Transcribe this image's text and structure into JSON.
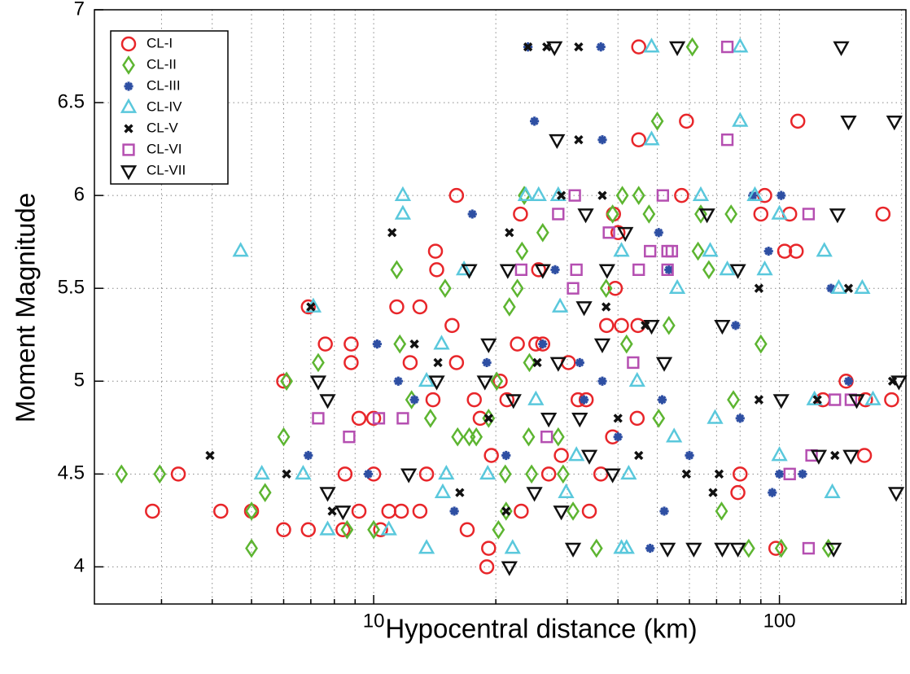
{
  "chart_data": {
    "type": "scatter",
    "xlabel": "Hypocentral distance (km)",
    "ylabel": "Moment Magnitude",
    "xscale": "log",
    "xlim": [
      2.05,
      205
    ],
    "xticks": [
      10,
      100
    ],
    "xminorticks": [
      3,
      4,
      5,
      6,
      7,
      8,
      9,
      20,
      30,
      40,
      50,
      60,
      70,
      80,
      90,
      200
    ],
    "ylim": [
      3.8,
      7
    ],
    "yticks": [
      4,
      4.5,
      5,
      5.5,
      6,
      6.5,
      7
    ],
    "grid": true,
    "legend": "upper left",
    "series": [
      {
        "name": "CL-I",
        "color": "#e8262a",
        "marker": "circle",
        "x": [
          2.85,
          3.3,
          4.2,
          5.0,
          6,
          6,
          6.9,
          6.9,
          7.6,
          8.5,
          8.4,
          8.8,
          8.8,
          9.2,
          9.2,
          10,
          10,
          10.4,
          10.9,
          11.4,
          11.7,
          12.3,
          13,
          13,
          13.5,
          14,
          14.2,
          14.3,
          16,
          16,
          15.6,
          17,
          17.7,
          18.3,
          19,
          19.2,
          19.5,
          20.5,
          21.3,
          22.6,
          23,
          23.1,
          25.1,
          25.5,
          26.1,
          27,
          29,
          30.2,
          31.9,
          33.4,
          34,
          36.3,
          37.5,
          38.8,
          39.4,
          40.8,
          40,
          39,
          44.8,
          44.6,
          45,
          45,
          57.4,
          59,
          90,
          92,
          98,
          103,
          106,
          111,
          110,
          80,
          79,
          128,
          146,
          162,
          180,
          189,
          163
        ],
        "values": [
          4.3,
          4.5,
          4.3,
          4.3,
          4.2,
          5.0,
          4.2,
          5.4,
          5.2,
          4.5,
          4.2,
          5.1,
          5.2,
          4.8,
          4.3,
          4.8,
          4.5,
          4.2,
          4.3,
          5.4,
          4.3,
          5.1,
          5.4,
          4.3,
          4.5,
          4.9,
          5.7,
          5.6,
          6.0,
          5.1,
          5.3,
          4.2,
          4.9,
          4.8,
          4.0,
          4.1,
          4.6,
          5.0,
          4.9,
          5.2,
          5.9,
          4.3,
          5.2,
          5.6,
          5.2,
          4.5,
          4.6,
          5.1,
          4.9,
          4.9,
          4.3,
          4.5,
          5.3,
          4.7,
          5.5,
          5.3,
          5.8,
          5.9,
          5.3,
          4.8,
          6.3,
          6.8,
          6.0,
          6.4,
          5.9,
          6.0,
          4.1,
          5.7,
          5.9,
          6.4,
          5.7,
          4.5,
          4.4,
          4.9,
          5.0,
          4.6,
          5.9,
          4.9,
          4.9
        ]
      },
      {
        "name": "CL-II",
        "color": "#5db531",
        "marker": "diamond",
        "x": [
          2.39,
          2.97,
          5.0,
          5.0,
          5.4,
          6.0,
          6.1,
          7.3,
          8.6,
          10,
          11.6,
          11.4,
          12.4,
          13.8,
          15,
          16.1,
          17.2,
          17.9,
          19.2,
          20.1,
          20.3,
          21.2,
          21.1,
          21.6,
          22.6,
          23.2,
          23.5,
          24.2,
          24.1,
          24.5,
          26.1,
          28.5,
          29.3,
          31,
          35.4,
          37.4,
          38.8,
          41,
          42,
          45,
          47.7,
          50,
          50.4,
          53.4,
          61,
          63,
          64,
          67,
          72,
          76,
          77,
          84,
          90,
          101,
          132
        ],
        "values": [
          4.5,
          4.5,
          4.3,
          4.1,
          4.4,
          4.7,
          5.0,
          5.1,
          4.2,
          4.2,
          5.2,
          5.6,
          4.9,
          4.8,
          5.5,
          4.7,
          4.7,
          4.7,
          4.8,
          5.0,
          4.2,
          4.3,
          4.5,
          5.4,
          5.5,
          5.7,
          6.0,
          5.1,
          4.7,
          4.5,
          5.8,
          4.7,
          4.5,
          4.3,
          4.1,
          5.5,
          5.9,
          6.0,
          5.2,
          6.0,
          5.9,
          6.4,
          4.8,
          5.3,
          6.8,
          5.7,
          5.9,
          5.6,
          4.3,
          5.9,
          4.9,
          4.1,
          5.2,
          4.1,
          4.1
        ]
      },
      {
        "name": "CL-III",
        "color": "#2e4fa3",
        "marker": "asterisk",
        "x": [
          6.9,
          9.7,
          10.2,
          11.5,
          12.6,
          15.8,
          17.5,
          19,
          21.2,
          24,
          24.9,
          26.1,
          28,
          32.2,
          33,
          36.6,
          36.3,
          36.6,
          40,
          48,
          50.4,
          51.4,
          52,
          53.4,
          60,
          80,
          78,
          86,
          94,
          96,
          100,
          101,
          114,
          134,
          148
        ],
        "values": [
          4.6,
          4.5,
          5.2,
          5.0,
          4.9,
          4.3,
          5.9,
          5.1,
          4.6,
          6.8,
          6.4,
          5.2,
          5.6,
          5.1,
          4.9,
          5.0,
          6.8,
          6.3,
          4.7,
          4.1,
          5.8,
          4.9,
          4.3,
          5.6,
          4.6,
          4.8,
          5.3,
          6.0,
          5.7,
          4.4,
          4.5,
          6.0,
          4.5,
          5.5,
          5.0
        ]
      },
      {
        "name": "CL-IV",
        "color": "#5ac8dc",
        "marker": "triangle-up",
        "x": [
          4.7,
          5.3,
          6.7,
          7.1,
          7.7,
          10.9,
          11.8,
          11.8,
          13.5,
          13.5,
          14.7,
          14.8,
          15.1,
          16.7,
          19.1,
          22,
          23.7,
          25.1,
          25.5,
          28.5,
          28.8,
          29.8,
          31.6,
          40.8,
          40.8,
          42,
          42.5,
          44.6,
          48.4,
          48.4,
          55,
          56,
          64,
          67.5,
          69.4,
          74.4,
          80,
          80,
          87,
          92,
          100,
          100,
          122,
          129,
          140,
          135,
          160,
          170
        ],
        "values": [
          5.7,
          4.5,
          4.5,
          5.4,
          4.2,
          4.2,
          6.0,
          5.9,
          5.0,
          4.1,
          5.2,
          4.4,
          4.5,
          5.6,
          4.5,
          4.1,
          6.0,
          4.9,
          6.0,
          6.0,
          5.4,
          4.4,
          4.6,
          5.7,
          4.1,
          4.1,
          4.5,
          5.0,
          6.8,
          6.3,
          4.7,
          5.5,
          6.0,
          5.7,
          4.8,
          5.6,
          6.8,
          6.4,
          6.0,
          5.6,
          4.6,
          5.9,
          4.9,
          5.7,
          5.5,
          4.4,
          5.5,
          4.9
        ]
      },
      {
        "name": "CL-V",
        "color": "#111111",
        "marker": "x",
        "x": [
          3.95,
          6.1,
          7.0,
          7.9,
          11.1,
          12.6,
          14.4,
          16.3,
          19.2,
          21.2,
          21.6,
          24,
          25.3,
          26.7,
          29,
          32,
          32,
          36.6,
          37.4,
          40,
          45,
          46.7,
          59,
          68.6,
          71,
          89,
          89,
          124,
          137,
          148,
          190
        ],
        "values": [
          4.6,
          4.5,
          5.4,
          4.3,
          5.8,
          5.2,
          5.1,
          4.4,
          4.8,
          4.3,
          5.8,
          6.8,
          5.1,
          6.8,
          6.0,
          6.8,
          6.3,
          6.0,
          5.4,
          4.8,
          4.6,
          5.3,
          4.5,
          4.4,
          4.5,
          5.5,
          4.9,
          4.9,
          4.6,
          5.5,
          5.0
        ]
      },
      {
        "name": "CL-VI",
        "color": "#b54fb1",
        "marker": "square",
        "x": [
          7.3,
          8.7,
          10.3,
          11.8,
          23.1,
          26.7,
          28.5,
          31,
          31.3,
          31.6,
          38,
          43.6,
          45,
          48,
          51.6,
          53,
          53,
          54.3,
          74.4,
          74.4,
          106,
          118,
          120,
          118,
          137,
          150
        ],
        "values": [
          4.8,
          4.7,
          4.8,
          4.8,
          5.6,
          4.7,
          5.9,
          5.5,
          6.0,
          5.6,
          5.8,
          5.1,
          5.6,
          5.7,
          6.0,
          5.6,
          5.7,
          5.7,
          6.8,
          6.3,
          4.5,
          5.9,
          4.6,
          4.1,
          4.9,
          4.9
        ]
      },
      {
        "name": "CL-VII",
        "color": "#111111",
        "marker": "triangle-down",
        "x": [
          7.3,
          7.7,
          7.7,
          8.4,
          12.2,
          14.3,
          17.2,
          18.8,
          19.2,
          21.6,
          21.4,
          22.1,
          24.9,
          26.1,
          27,
          27.9,
          28.3,
          28.5,
          29,
          31,
          32.2,
          33,
          33.3,
          34,
          36.6,
          37.6,
          38.8,
          41.7,
          48.4,
          52,
          53,
          56,
          61.5,
          66.3,
          72.3,
          72.3,
          79,
          79,
          101,
          125,
          136,
          139,
          142,
          148,
          155,
          150,
          192,
          194,
          197
        ],
        "values": [
          5.0,
          4.9,
          4.4,
          4.3,
          4.5,
          5.0,
          5.6,
          5.0,
          5.2,
          4.0,
          5.6,
          4.9,
          4.4,
          5.6,
          4.8,
          6.8,
          6.3,
          5.1,
          4.3,
          4.1,
          4.8,
          5.4,
          5.9,
          4.6,
          5.2,
          5.6,
          4.5,
          5.8,
          5.3,
          5.1,
          4.1,
          6.8,
          4.1,
          5.9,
          4.1,
          5.3,
          5.6,
          4.1,
          4.9,
          4.6,
          4.1,
          5.9,
          6.8,
          6.4,
          4.9,
          4.6,
          6.4,
          4.4,
          5.0
        ]
      }
    ]
  }
}
